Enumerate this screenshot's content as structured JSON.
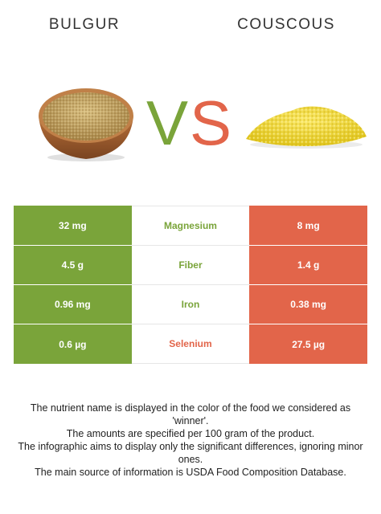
{
  "foods": {
    "left": {
      "name": "BULGUR",
      "color": "#7aa43a"
    },
    "right": {
      "name": "COUSCOUS",
      "color": "#e2654a"
    }
  },
  "vs": {
    "v": "V",
    "s": "S"
  },
  "rows": [
    {
      "nutrient": "Magnesium",
      "left": "32 mg",
      "right": "8 mg",
      "winner": "left"
    },
    {
      "nutrient": "Fiber",
      "left": "4.5 g",
      "right": "1.4 g",
      "winner": "left"
    },
    {
      "nutrient": "Iron",
      "left": "0.96 mg",
      "right": "0.38 mg",
      "winner": "left"
    },
    {
      "nutrient": "Selenium",
      "left": "0.6 µg",
      "right": "27.5 µg",
      "winner": "right"
    }
  ],
  "footnote": [
    "The nutrient name is displayed in the color of the food we considered as 'winner'.",
    "The amounts are specified per 100 gram of the product.",
    "The infographic aims to display only the significant differences, ignoring minor ones.",
    "The main source of information is USDA Food Composition Database."
  ]
}
